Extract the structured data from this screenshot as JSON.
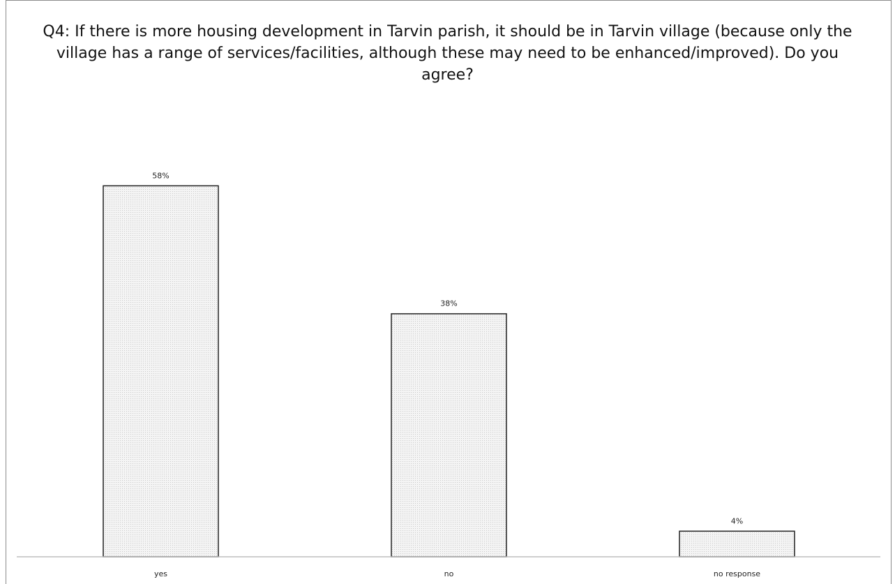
{
  "chart_data": {
    "type": "bar",
    "title": "Q4:  If there is more housing development in Tarvin parish, it should be in Tarvin village (because only the village has a range of services/facilities, although these may need to be enhanced/improved). Do you agree?",
    "categories": [
      "yes",
      "no",
      "no response"
    ],
    "values": [
      58,
      38,
      4
    ],
    "data_labels": [
      "58%",
      "38%",
      "4%"
    ],
    "unit": "%",
    "ylim": [
      0,
      60
    ],
    "grid": false,
    "legend": "none",
    "colors": {
      "bar_fill": "#f4f4f4",
      "bar_stroke": "#222222",
      "dot": "#c9c9c9",
      "axis": "#bdbdbd"
    }
  }
}
